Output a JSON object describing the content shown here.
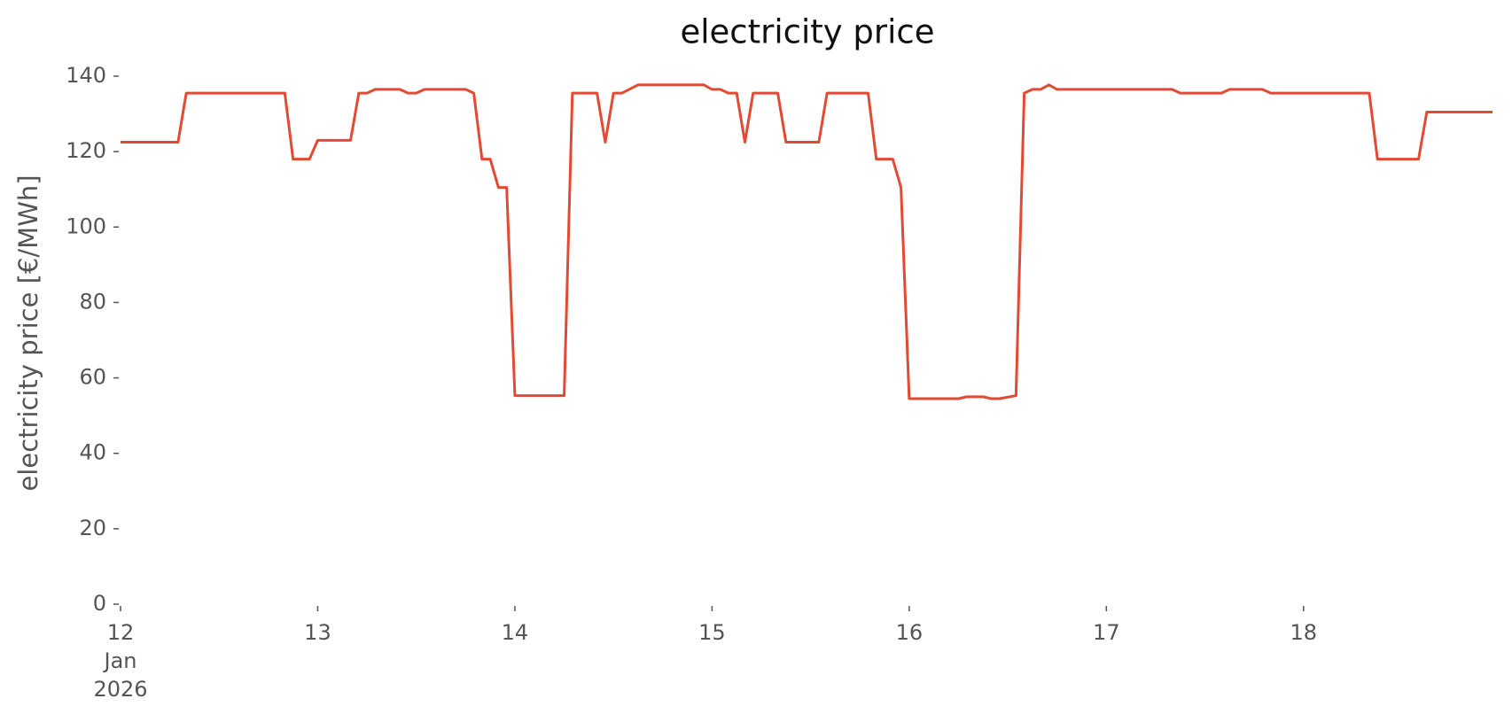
{
  "chart_data": {
    "type": "line",
    "title": "electricity price",
    "y_label": "electricity price [€/MWh]",
    "x": [
      "2026-01-12T00:00",
      "2026-01-12T07:00",
      "2026-01-12T08:00",
      "2026-01-12T20:00",
      "2026-01-12T21:00",
      "2026-01-12T23:00",
      "2026-01-13T00:00",
      "2026-01-13T04:00",
      "2026-01-13T05:00",
      "2026-01-13T06:00",
      "2026-01-13T07:00",
      "2026-01-13T10:00",
      "2026-01-13T11:00",
      "2026-01-13T12:00",
      "2026-01-13T13:00",
      "2026-01-13T18:00",
      "2026-01-13T19:00",
      "2026-01-13T20:00",
      "2026-01-13T21:00",
      "2026-01-13T22:00",
      "2026-01-13T23:00",
      "2026-01-14T00:00",
      "2026-01-14T06:00",
      "2026-01-14T07:00",
      "2026-01-14T10:00",
      "2026-01-14T11:00",
      "2026-01-14T12:00",
      "2026-01-14T13:00",
      "2026-01-14T15:00",
      "2026-01-14T23:00",
      "2026-01-15T00:00",
      "2026-01-15T01:00",
      "2026-01-15T02:00",
      "2026-01-15T03:00",
      "2026-01-15T04:00",
      "2026-01-15T05:00",
      "2026-01-15T08:00",
      "2026-01-15T09:00",
      "2026-01-15T13:00",
      "2026-01-15T14:00",
      "2026-01-15T19:00",
      "2026-01-15T20:00",
      "2026-01-15T22:00",
      "2026-01-15T23:00",
      "2026-01-16T00:00",
      "2026-01-16T06:00",
      "2026-01-16T07:00",
      "2026-01-16T09:00",
      "2026-01-16T10:00",
      "2026-01-16T11:00",
      "2026-01-16T13:00",
      "2026-01-16T14:00",
      "2026-01-16T15:00",
      "2026-01-16T16:00",
      "2026-01-16T17:00",
      "2026-01-16T18:00",
      "2026-01-17T08:00",
      "2026-01-17T09:00",
      "2026-01-17T14:00",
      "2026-01-17T15:00",
      "2026-01-17T19:00",
      "2026-01-17T20:00",
      "2026-01-18T08:00",
      "2026-01-18T09:00",
      "2026-01-18T14:00",
      "2026-01-18T15:00",
      "2026-01-18T23:00"
    ],
    "series": [
      {
        "name": "electricity price",
        "color": "#E24A33",
        "values": [
          122.5,
          122.5,
          135.5,
          135.5,
          118,
          118,
          123,
          123,
          135.5,
          135.5,
          136.5,
          136.5,
          135.5,
          135.5,
          136.5,
          136.5,
          135.5,
          118,
          118,
          110.5,
          110.5,
          55.3,
          55.3,
          135.5,
          135.5,
          122.5,
          135.5,
          135.5,
          137.7,
          137.7,
          136.5,
          136.5,
          135.5,
          135.5,
          122.5,
          135.5,
          135.5,
          122.5,
          122.5,
          135.5,
          135.5,
          118,
          118,
          110.5,
          54.5,
          54.5,
          55,
          55,
          54.5,
          54.5,
          55.3,
          135.5,
          136.5,
          136.5,
          137.7,
          136.5,
          136.5,
          135.5,
          135.5,
          136.5,
          136.5,
          135.5,
          135.5,
          118,
          118,
          130.5,
          130.5
        ]
      }
    ],
    "xlim": [
      "2026-01-12T00:00",
      "2026-01-18T23:00"
    ],
    "xticks": [
      {
        "value": "2026-01-12T00:00",
        "label": "12\nJan\n2026"
      },
      {
        "value": "2026-01-13T00:00",
        "label": "13"
      },
      {
        "value": "2026-01-14T00:00",
        "label": "14"
      },
      {
        "value": "2026-01-15T00:00",
        "label": "15"
      },
      {
        "value": "2026-01-16T00:00",
        "label": "16"
      },
      {
        "value": "2026-01-17T00:00",
        "label": "17"
      },
      {
        "value": "2026-01-18T00:00",
        "label": "18"
      }
    ],
    "ylim": [
      0,
      140
    ],
    "yticks": [
      0,
      20,
      40,
      60,
      80,
      100,
      120,
      140
    ],
    "grid": false
  }
}
